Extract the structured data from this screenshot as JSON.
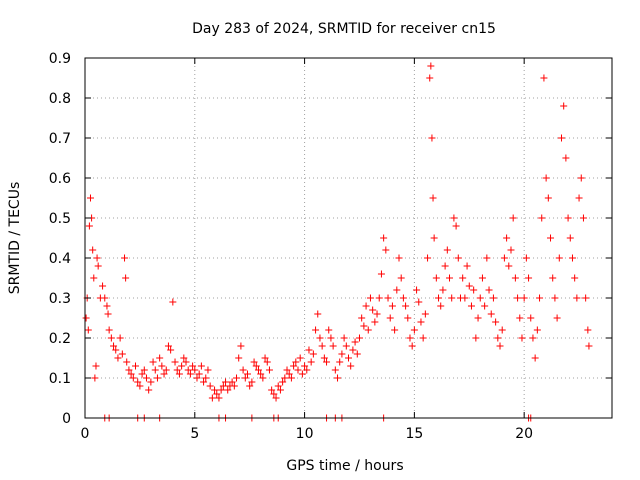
{
  "chart_data": {
    "type": "scatter",
    "title": "Day 283 of 2024, SRMTID for receiver cn15",
    "xlabel": "GPS time / hours",
    "ylabel": "SRMTID / TECUs",
    "xlim": [
      0,
      24
    ],
    "ylim": [
      0,
      0.9
    ],
    "xticks": [
      0,
      5,
      10,
      15,
      20
    ],
    "yticks": [
      0,
      0.1,
      0.2,
      0.3,
      0.4,
      0.5,
      0.6,
      0.7,
      0.8,
      0.9
    ],
    "xtick_labels": [
      "0",
      "5",
      "10",
      "15",
      "20"
    ],
    "ytick_labels": [
      "0",
      "0.1",
      "0.2",
      "0.3",
      "0.4",
      "0.5",
      "0.6",
      "0.7",
      "0.8",
      "0.9"
    ],
    "grid": true,
    "marker": "+",
    "color": "#ff0000",
    "series": [
      {
        "name": "SRMTID",
        "points": [
          [
            0.05,
            0.25
          ],
          [
            0.1,
            0.3
          ],
          [
            0.15,
            0.22
          ],
          [
            0.2,
            0.48
          ],
          [
            0.25,
            0.55
          ],
          [
            0.3,
            0.5
          ],
          [
            0.35,
            0.42
          ],
          [
            0.4,
            0.35
          ],
          [
            0.45,
            0.1
          ],
          [
            0.5,
            0.13
          ],
          [
            0.55,
            0.4
          ],
          [
            0.6,
            0.38
          ],
          [
            0.7,
            0.3
          ],
          [
            0.8,
            0.33
          ],
          [
            0.9,
            0.3
          ],
          [
            1.0,
            0.28
          ],
          [
            1.05,
            0.26
          ],
          [
            1.1,
            0.22
          ],
          [
            1.2,
            0.2
          ],
          [
            1.3,
            0.18
          ],
          [
            1.4,
            0.17
          ],
          [
            1.5,
            0.15
          ],
          [
            1.6,
            0.2
          ],
          [
            1.7,
            0.16
          ],
          [
            1.8,
            0.4
          ],
          [
            1.85,
            0.35
          ],
          [
            1.9,
            0.14
          ],
          [
            2.0,
            0.12
          ],
          [
            2.1,
            0.11
          ],
          [
            2.2,
            0.1
          ],
          [
            2.3,
            0.13
          ],
          [
            2.4,
            0.09
          ],
          [
            2.5,
            0.08
          ],
          [
            2.6,
            0.11
          ],
          [
            2.7,
            0.12
          ],
          [
            2.8,
            0.1
          ],
          [
            2.9,
            0.07
          ],
          [
            3.0,
            0.09
          ],
          [
            3.1,
            0.14
          ],
          [
            3.2,
            0.12
          ],
          [
            3.3,
            0.1
          ],
          [
            3.4,
            0.15
          ],
          [
            3.5,
            0.13
          ],
          [
            3.6,
            0.11
          ],
          [
            3.7,
            0.12
          ],
          [
            3.8,
            0.18
          ],
          [
            3.9,
            0.17
          ],
          [
            4.0,
            0.29
          ],
          [
            4.1,
            0.14
          ],
          [
            4.2,
            0.12
          ],
          [
            4.3,
            0.11
          ],
          [
            4.4,
            0.13
          ],
          [
            4.5,
            0.15
          ],
          [
            4.6,
            0.14
          ],
          [
            4.7,
            0.12
          ],
          [
            4.8,
            0.11
          ],
          [
            4.9,
            0.13
          ],
          [
            5.0,
            0.12
          ],
          [
            5.1,
            0.1
          ],
          [
            5.2,
            0.11
          ],
          [
            5.3,
            0.13
          ],
          [
            5.4,
            0.09
          ],
          [
            5.5,
            0.1
          ],
          [
            5.6,
            0.12
          ],
          [
            5.7,
            0.08
          ],
          [
            5.8,
            0.05
          ],
          [
            5.9,
            0.07
          ],
          [
            6.0,
            0.06
          ],
          [
            6.1,
            0.05
          ],
          [
            6.2,
            0.07
          ],
          [
            6.3,
            0.08
          ],
          [
            6.4,
            0.09
          ],
          [
            6.5,
            0.07
          ],
          [
            6.6,
            0.08
          ],
          [
            6.7,
            0.09
          ],
          [
            6.8,
            0.08
          ],
          [
            6.9,
            0.1
          ],
          [
            7.0,
            0.15
          ],
          [
            7.1,
            0.18
          ],
          [
            7.2,
            0.12
          ],
          [
            7.3,
            0.1
          ],
          [
            7.4,
            0.11
          ],
          [
            7.5,
            0.08
          ],
          [
            7.6,
            0.09
          ],
          [
            7.7,
            0.14
          ],
          [
            7.8,
            0.13
          ],
          [
            7.9,
            0.12
          ],
          [
            8.0,
            0.11
          ],
          [
            8.1,
            0.1
          ],
          [
            8.2,
            0.15
          ],
          [
            8.3,
            0.14
          ],
          [
            8.4,
            0.12
          ],
          [
            8.5,
            0.07
          ],
          [
            8.6,
            0.06
          ],
          [
            8.7,
            0.05
          ],
          [
            8.8,
            0.08
          ],
          [
            8.9,
            0.07
          ],
          [
            9.0,
            0.09
          ],
          [
            9.1,
            0.1
          ],
          [
            9.2,
            0.12
          ],
          [
            9.3,
            0.11
          ],
          [
            9.4,
            0.1
          ],
          [
            9.5,
            0.13
          ],
          [
            9.6,
            0.14
          ],
          [
            9.7,
            0.12
          ],
          [
            9.8,
            0.15
          ],
          [
            9.9,
            0.11
          ],
          [
            10.0,
            0.13
          ],
          [
            10.1,
            0.12
          ],
          [
            10.2,
            0.17
          ],
          [
            10.3,
            0.14
          ],
          [
            10.4,
            0.16
          ],
          [
            10.5,
            0.22
          ],
          [
            10.6,
            0.26
          ],
          [
            10.7,
            0.2
          ],
          [
            10.8,
            0.18
          ],
          [
            10.9,
            0.15
          ],
          [
            11.0,
            0.14
          ],
          [
            11.1,
            0.22
          ],
          [
            11.2,
            0.2
          ],
          [
            11.3,
            0.18
          ],
          [
            11.4,
            0.12
          ],
          [
            11.5,
            0.1
          ],
          [
            11.6,
            0.14
          ],
          [
            11.7,
            0.16
          ],
          [
            11.8,
            0.2
          ],
          [
            11.9,
            0.18
          ],
          [
            12.0,
            0.15
          ],
          [
            12.1,
            0.13
          ],
          [
            12.2,
            0.17
          ],
          [
            12.3,
            0.19
          ],
          [
            12.4,
            0.16
          ],
          [
            12.5,
            0.2
          ],
          [
            12.6,
            0.25
          ],
          [
            12.7,
            0.23
          ],
          [
            12.8,
            0.28
          ],
          [
            12.9,
            0.22
          ],
          [
            13.0,
            0.3
          ],
          [
            13.1,
            0.27
          ],
          [
            13.2,
            0.24
          ],
          [
            13.3,
            0.26
          ],
          [
            13.4,
            0.3
          ],
          [
            13.5,
            0.36
          ],
          [
            13.6,
            0.45
          ],
          [
            13.7,
            0.42
          ],
          [
            13.8,
            0.3
          ],
          [
            13.9,
            0.25
          ],
          [
            14.0,
            0.28
          ],
          [
            14.1,
            0.22
          ],
          [
            14.2,
            0.32
          ],
          [
            14.3,
            0.4
          ],
          [
            14.4,
            0.35
          ],
          [
            14.5,
            0.3
          ],
          [
            14.6,
            0.28
          ],
          [
            14.7,
            0.25
          ],
          [
            14.8,
            0.2
          ],
          [
            14.9,
            0.18
          ],
          [
            15.0,
            0.22
          ],
          [
            15.1,
            0.32
          ],
          [
            15.2,
            0.29
          ],
          [
            15.3,
            0.24
          ],
          [
            15.4,
            0.2
          ],
          [
            15.5,
            0.26
          ],
          [
            15.6,
            0.4
          ],
          [
            15.7,
            0.85
          ],
          [
            15.75,
            0.88
          ],
          [
            15.8,
            0.7
          ],
          [
            15.85,
            0.55
          ],
          [
            15.9,
            0.45
          ],
          [
            16.0,
            0.35
          ],
          [
            16.1,
            0.3
          ],
          [
            16.2,
            0.28
          ],
          [
            16.3,
            0.32
          ],
          [
            16.4,
            0.38
          ],
          [
            16.5,
            0.42
          ],
          [
            16.6,
            0.35
          ],
          [
            16.7,
            0.3
          ],
          [
            16.8,
            0.5
          ],
          [
            16.9,
            0.48
          ],
          [
            17.0,
            0.4
          ],
          [
            17.1,
            0.3
          ],
          [
            17.2,
            0.35
          ],
          [
            17.3,
            0.3
          ],
          [
            17.4,
            0.38
          ],
          [
            17.5,
            0.33
          ],
          [
            17.6,
            0.28
          ],
          [
            17.7,
            0.32
          ],
          [
            17.8,
            0.2
          ],
          [
            17.9,
            0.25
          ],
          [
            18.0,
            0.3
          ],
          [
            18.1,
            0.35
          ],
          [
            18.2,
            0.28
          ],
          [
            18.3,
            0.4
          ],
          [
            18.4,
            0.32
          ],
          [
            18.5,
            0.26
          ],
          [
            18.6,
            0.3
          ],
          [
            18.7,
            0.24
          ],
          [
            18.8,
            0.2
          ],
          [
            18.9,
            0.18
          ],
          [
            19.0,
            0.22
          ],
          [
            19.1,
            0.4
          ],
          [
            19.2,
            0.45
          ],
          [
            19.3,
            0.38
          ],
          [
            19.4,
            0.42
          ],
          [
            19.5,
            0.5
          ],
          [
            19.6,
            0.35
          ],
          [
            19.7,
            0.3
          ],
          [
            19.8,
            0.25
          ],
          [
            19.9,
            0.2
          ],
          [
            20.0,
            0.3
          ],
          [
            20.1,
            0.4
          ],
          [
            20.2,
            0.35
          ],
          [
            20.3,
            0.25
          ],
          [
            20.4,
            0.2
          ],
          [
            20.5,
            0.15
          ],
          [
            20.6,
            0.22
          ],
          [
            20.7,
            0.3
          ],
          [
            20.8,
            0.5
          ],
          [
            20.9,
            0.85
          ],
          [
            21.0,
            0.6
          ],
          [
            21.1,
            0.55
          ],
          [
            21.2,
            0.45
          ],
          [
            21.3,
            0.35
          ],
          [
            21.4,
            0.3
          ],
          [
            21.5,
            0.25
          ],
          [
            21.6,
            0.4
          ],
          [
            21.7,
            0.7
          ],
          [
            21.8,
            0.78
          ],
          [
            21.9,
            0.65
          ],
          [
            22.0,
            0.5
          ],
          [
            22.1,
            0.45
          ],
          [
            22.2,
            0.4
          ],
          [
            22.3,
            0.35
          ],
          [
            22.4,
            0.3
          ],
          [
            22.5,
            0.55
          ],
          [
            22.6,
            0.6
          ],
          [
            22.7,
            0.5
          ],
          [
            22.8,
            0.3
          ],
          [
            22.9,
            0.22
          ],
          [
            22.95,
            0.18
          ],
          [
            0.9,
            0
          ],
          [
            1.1,
            0
          ],
          [
            2.4,
            0
          ],
          [
            2.7,
            0
          ],
          [
            3.4,
            0
          ],
          [
            6.1,
            0
          ],
          [
            6.4,
            0
          ],
          [
            7.6,
            0
          ],
          [
            8.6,
            0
          ],
          [
            8.8,
            0
          ],
          [
            11.0,
            0
          ],
          [
            11.4,
            0
          ],
          [
            11.7,
            0
          ],
          [
            13.6,
            0
          ],
          [
            20.2,
            0
          ],
          [
            20.3,
            0
          ]
        ]
      }
    ]
  }
}
